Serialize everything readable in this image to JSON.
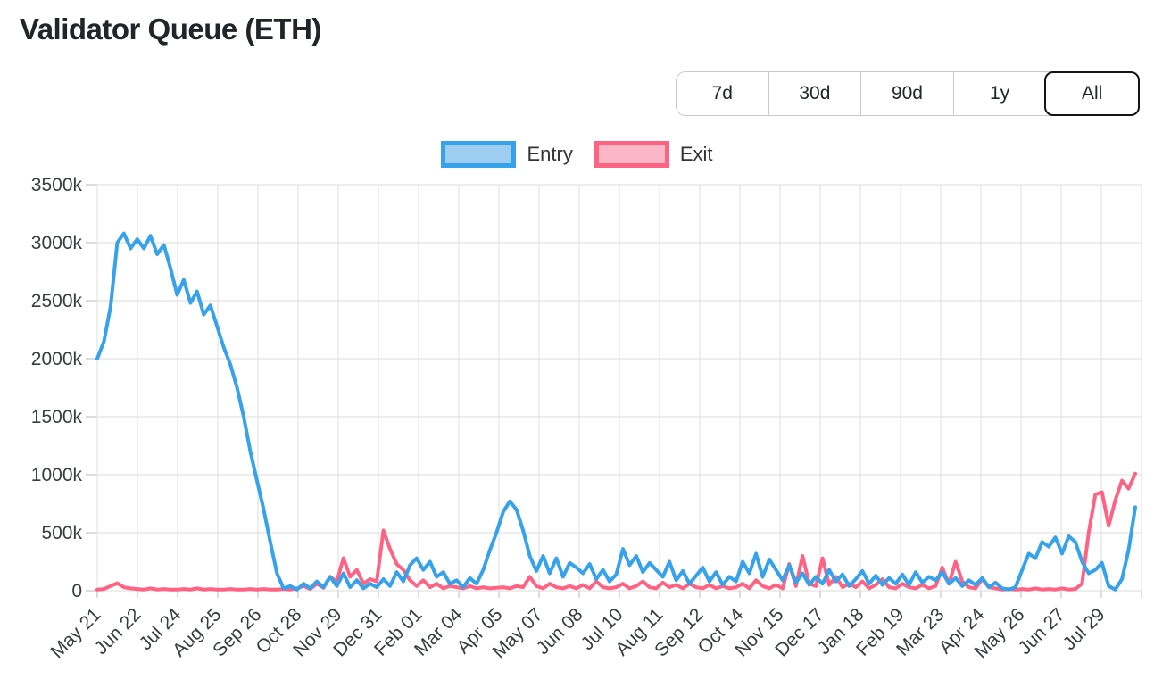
{
  "page": {
    "title": "Validator Queue (ETH)"
  },
  "time_range_selector": {
    "options": [
      "7d",
      "30d",
      "90d",
      "1y",
      "All"
    ],
    "active": "All"
  },
  "legend": [
    {
      "label": "Entry",
      "color": "#36a2eb",
      "fill": "#9ecdf2"
    },
    {
      "label": "Exit",
      "color": "#ff6384",
      "fill": "#fbb7c6"
    }
  ],
  "chart_data": {
    "type": "line",
    "title": "Validator Queue (ETH)",
    "xlabel": "",
    "ylabel": "",
    "ylim_k": [
      0,
      3500
    ],
    "grid": true,
    "legend_position": "top-center",
    "y_ticks_k": [
      0,
      500,
      1000,
      1500,
      2000,
      2500,
      3000,
      3500
    ],
    "y_tick_labels": [
      "0",
      "500k",
      "1000k",
      "1500k",
      "2000k",
      "2500k",
      "3000k",
      "3500k"
    ],
    "x_tick_labels": [
      "May 21",
      "Jun 22",
      "Jul 24",
      "Aug 25",
      "Sep 26",
      "Oct 28",
      "Nov 29",
      "Dec 31",
      "Feb 01",
      "Mar 04",
      "Apr 05",
      "May 07",
      "Jun 08",
      "Jul 10",
      "Aug 11",
      "Sep 12",
      "Oct 14",
      "Nov 15",
      "Dec 17",
      "Jan 18",
      "Feb 19",
      "Mar 23",
      "Apr 24",
      "May 26",
      "Jun 27",
      "Jul 29"
    ],
    "series": [
      {
        "name": "Entry",
        "color": "#36a2eb",
        "values_k": [
          2000,
          2150,
          2450,
          3000,
          3080,
          2950,
          3030,
          2950,
          3060,
          2900,
          2980,
          2780,
          2550,
          2680,
          2480,
          2580,
          2380,
          2460,
          2280,
          2100,
          1950,
          1750,
          1500,
          1200,
          950,
          700,
          420,
          150,
          20,
          40,
          10,
          60,
          20,
          80,
          30,
          120,
          40,
          150,
          30,
          90,
          20,
          60,
          30,
          100,
          40,
          160,
          80,
          220,
          280,
          180,
          250,
          120,
          160,
          60,
          90,
          30,
          110,
          60,
          180,
          350,
          500,
          680,
          770,
          700,
          520,
          300,
          170,
          300,
          150,
          280,
          120,
          240,
          200,
          150,
          230,
          100,
          180,
          80,
          140,
          360,
          220,
          300,
          160,
          240,
          180,
          120,
          250,
          90,
          170,
          60,
          130,
          200,
          80,
          160,
          50,
          120,
          80,
          250,
          150,
          320,
          120,
          270,
          180,
          90,
          220,
          70,
          150,
          50,
          120,
          60,
          180,
          80,
          140,
          40,
          100,
          170,
          60,
          130,
          50,
          110,
          60,
          140,
          50,
          160,
          70,
          120,
          90,
          160,
          60,
          110,
          40,
          90,
          50,
          110,
          30,
          70,
          20,
          10,
          30,
          180,
          320,
          280,
          420,
          380,
          460,
          320,
          470,
          420,
          250,
          150,
          180,
          240,
          40,
          10,
          100,
          350,
          720
        ]
      },
      {
        "name": "Exit",
        "color": "#ff6384",
        "values_k": [
          10,
          15,
          40,
          65,
          30,
          20,
          15,
          10,
          20,
          10,
          15,
          10,
          10,
          15,
          10,
          20,
          10,
          15,
          10,
          10,
          15,
          10,
          10,
          15,
          10,
          15,
          10,
          10,
          15,
          10,
          20,
          40,
          15,
          60,
          25,
          120,
          80,
          280,
          120,
          180,
          60,
          100,
          80,
          520,
          360,
          230,
          180,
          90,
          40,
          90,
          30,
          60,
          20,
          40,
          30,
          20,
          40,
          20,
          30,
          20,
          25,
          30,
          20,
          40,
          30,
          120,
          40,
          20,
          60,
          30,
          20,
          40,
          20,
          50,
          20,
          80,
          30,
          20,
          30,
          60,
          20,
          40,
          80,
          30,
          20,
          70,
          30,
          50,
          20,
          60,
          30,
          20,
          50,
          20,
          40,
          20,
          30,
          60,
          20,
          90,
          40,
          20,
          50,
          20,
          230,
          40,
          300,
          60,
          40,
          280,
          50,
          120,
          30,
          60,
          30,
          80,
          20,
          50,
          100,
          30,
          20,
          60,
          30,
          20,
          50,
          20,
          40,
          200,
          60,
          250,
          80,
          30,
          20,
          100,
          30,
          20,
          10,
          15,
          10,
          15,
          10,
          20,
          10,
          15,
          10,
          20,
          10,
          15,
          60,
          500,
          830,
          850,
          560,
          780,
          950,
          880,
          1010
        ]
      }
    ]
  }
}
